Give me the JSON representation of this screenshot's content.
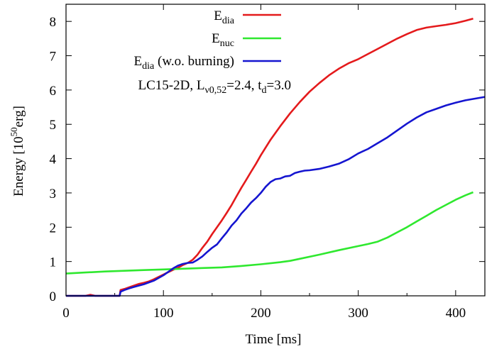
{
  "chart_data": {
    "type": "line",
    "title": "",
    "annotation": {
      "base": "LC15-2D, L",
      "sub1": "ν0,52",
      "mid": "=2.4, t",
      "sub2": "d",
      "tail": "=3.0"
    },
    "xlabel": "Time [ms]",
    "ylabel": {
      "base": "Energy [10",
      "sup": "50",
      "tail": "erg]"
    },
    "xlim": [
      0,
      430
    ],
    "ylim": [
      0,
      8.5
    ],
    "xticks": [
      0,
      100,
      200,
      300,
      400
    ],
    "yticks": [
      0,
      1,
      2,
      3,
      4,
      5,
      6,
      7,
      8
    ],
    "legend_position": "top-right",
    "series": [
      {
        "name": "E_dia",
        "legend": {
          "base": "E",
          "sub": "dia",
          "tail": ""
        },
        "color": "#e41a1c",
        "points": [
          [
            0,
            0
          ],
          [
            20,
            0
          ],
          [
            25,
            0.03
          ],
          [
            30,
            0
          ],
          [
            35,
            0
          ],
          [
            40,
            0
          ],
          [
            45,
            0
          ],
          [
            50,
            0
          ],
          [
            55,
            0
          ],
          [
            56,
            0.17
          ],
          [
            60,
            0.2
          ],
          [
            65,
            0.25
          ],
          [
            70,
            0.3
          ],
          [
            75,
            0.35
          ],
          [
            80,
            0.38
          ],
          [
            85,
            0.42
          ],
          [
            90,
            0.48
          ],
          [
            95,
            0.55
          ],
          [
            100,
            0.62
          ],
          [
            105,
            0.69
          ],
          [
            110,
            0.76
          ],
          [
            115,
            0.82
          ],
          [
            120,
            0.9
          ],
          [
            125,
            0.96
          ],
          [
            130,
            1.05
          ],
          [
            135,
            1.2
          ],
          [
            140,
            1.4
          ],
          [
            145,
            1.58
          ],
          [
            150,
            1.8
          ],
          [
            155,
            2.0
          ],
          [
            160,
            2.2
          ],
          [
            165,
            2.42
          ],
          [
            170,
            2.65
          ],
          [
            175,
            2.9
          ],
          [
            180,
            3.15
          ],
          [
            185,
            3.38
          ],
          [
            190,
            3.62
          ],
          [
            195,
            3.85
          ],
          [
            200,
            4.1
          ],
          [
            210,
            4.55
          ],
          [
            220,
            4.95
          ],
          [
            230,
            5.32
          ],
          [
            240,
            5.65
          ],
          [
            250,
            5.95
          ],
          [
            260,
            6.2
          ],
          [
            270,
            6.43
          ],
          [
            280,
            6.62
          ],
          [
            290,
            6.78
          ],
          [
            300,
            6.9
          ],
          [
            310,
            7.05
          ],
          [
            320,
            7.2
          ],
          [
            330,
            7.35
          ],
          [
            340,
            7.5
          ],
          [
            350,
            7.63
          ],
          [
            360,
            7.75
          ],
          [
            370,
            7.82
          ],
          [
            380,
            7.86
          ],
          [
            390,
            7.9
          ],
          [
            400,
            7.95
          ],
          [
            410,
            8.02
          ],
          [
            418,
            8.08
          ]
        ]
      },
      {
        "name": "E_nuc",
        "legend": {
          "base": "E",
          "sub": "nuc",
          "tail": ""
        },
        "color": "#2fe82f",
        "points": [
          [
            0,
            0.65
          ],
          [
            20,
            0.68
          ],
          [
            40,
            0.71
          ],
          [
            60,
            0.73
          ],
          [
            80,
            0.75
          ],
          [
            100,
            0.77
          ],
          [
            120,
            0.79
          ],
          [
            140,
            0.81
          ],
          [
            160,
            0.83
          ],
          [
            180,
            0.87
          ],
          [
            200,
            0.92
          ],
          [
            220,
            0.98
          ],
          [
            230,
            1.02
          ],
          [
            240,
            1.08
          ],
          [
            260,
            1.2
          ],
          [
            280,
            1.33
          ],
          [
            300,
            1.45
          ],
          [
            310,
            1.51
          ],
          [
            320,
            1.58
          ],
          [
            330,
            1.7
          ],
          [
            340,
            1.85
          ],
          [
            350,
            2.0
          ],
          [
            360,
            2.17
          ],
          [
            370,
            2.33
          ],
          [
            380,
            2.5
          ],
          [
            390,
            2.65
          ],
          [
            400,
            2.8
          ],
          [
            410,
            2.93
          ],
          [
            418,
            3.02
          ]
        ]
      },
      {
        "name": "E_dia (w.o. burning)",
        "legend": {
          "base": "E",
          "sub": "dia",
          "tail": " (w.o. burning)"
        },
        "color": "#1515d0",
        "points": [
          [
            0,
            0
          ],
          [
            20,
            0
          ],
          [
            40,
            0
          ],
          [
            55,
            0
          ],
          [
            56,
            0.12
          ],
          [
            60,
            0.17
          ],
          [
            65,
            0.22
          ],
          [
            70,
            0.26
          ],
          [
            75,
            0.3
          ],
          [
            80,
            0.34
          ],
          [
            85,
            0.39
          ],
          [
            90,
            0.44
          ],
          [
            95,
            0.52
          ],
          [
            100,
            0.6
          ],
          [
            105,
            0.7
          ],
          [
            110,
            0.8
          ],
          [
            115,
            0.88
          ],
          [
            120,
            0.93
          ],
          [
            125,
            0.96
          ],
          [
            130,
            0.97
          ],
          [
            135,
            1.05
          ],
          [
            140,
            1.15
          ],
          [
            145,
            1.28
          ],
          [
            150,
            1.4
          ],
          [
            155,
            1.5
          ],
          [
            160,
            1.68
          ],
          [
            165,
            1.85
          ],
          [
            170,
            2.05
          ],
          [
            175,
            2.2
          ],
          [
            180,
            2.4
          ],
          [
            185,
            2.55
          ],
          [
            190,
            2.72
          ],
          [
            195,
            2.85
          ],
          [
            200,
            3.0
          ],
          [
            205,
            3.18
          ],
          [
            210,
            3.32
          ],
          [
            215,
            3.4
          ],
          [
            220,
            3.42
          ],
          [
            225,
            3.48
          ],
          [
            230,
            3.5
          ],
          [
            235,
            3.58
          ],
          [
            240,
            3.62
          ],
          [
            245,
            3.65
          ],
          [
            250,
            3.66
          ],
          [
            260,
            3.7
          ],
          [
            270,
            3.77
          ],
          [
            280,
            3.85
          ],
          [
            290,
            3.98
          ],
          [
            300,
            4.15
          ],
          [
            310,
            4.28
          ],
          [
            320,
            4.45
          ],
          [
            330,
            4.62
          ],
          [
            340,
            4.82
          ],
          [
            350,
            5.02
          ],
          [
            360,
            5.2
          ],
          [
            370,
            5.35
          ],
          [
            380,
            5.45
          ],
          [
            390,
            5.55
          ],
          [
            400,
            5.63
          ],
          [
            410,
            5.7
          ],
          [
            420,
            5.75
          ],
          [
            430,
            5.8
          ]
        ]
      }
    ]
  }
}
